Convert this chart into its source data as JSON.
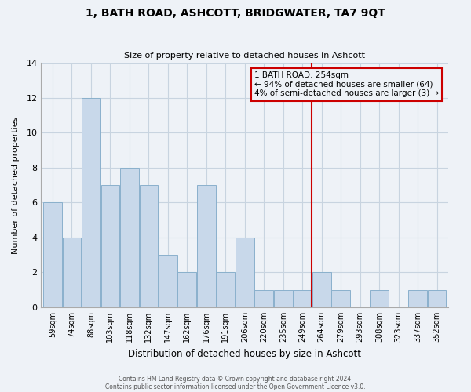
{
  "title": "1, BATH ROAD, ASHCOTT, BRIDGWATER, TA7 9QT",
  "subtitle": "Size of property relative to detached houses in Ashcott",
  "xlabel": "Distribution of detached houses by size in Ashcott",
  "ylabel": "Number of detached properties",
  "bin_labels": [
    "59sqm",
    "74sqm",
    "88sqm",
    "103sqm",
    "118sqm",
    "132sqm",
    "147sqm",
    "162sqm",
    "176sqm",
    "191sqm",
    "206sqm",
    "220sqm",
    "235sqm",
    "249sqm",
    "264sqm",
    "279sqm",
    "293sqm",
    "308sqm",
    "323sqm",
    "337sqm",
    "352sqm"
  ],
  "bar_values": [
    6,
    4,
    12,
    7,
    8,
    7,
    3,
    2,
    7,
    2,
    4,
    1,
    1,
    1,
    2,
    1,
    0,
    1,
    0,
    1,
    1
  ],
  "bar_color": "#c8d8ea",
  "bar_edge_color": "#8ab0cc",
  "grid_color": "#c8d4e0",
  "background_color": "#eef2f7",
  "vline_x": 13.5,
  "vline_color": "#cc0000",
  "annotation_title": "1 BATH ROAD: 254sqm",
  "annotation_line1": "← 94% of detached houses are smaller (64)",
  "annotation_line2": "4% of semi-detached houses are larger (3) →",
  "ylim": [
    0,
    14
  ],
  "yticks": [
    0,
    2,
    4,
    6,
    8,
    10,
    12,
    14
  ],
  "footer1": "Contains HM Land Registry data © Crown copyright and database right 2024.",
  "footer2": "Contains public sector information licensed under the Open Government Licence v3.0."
}
